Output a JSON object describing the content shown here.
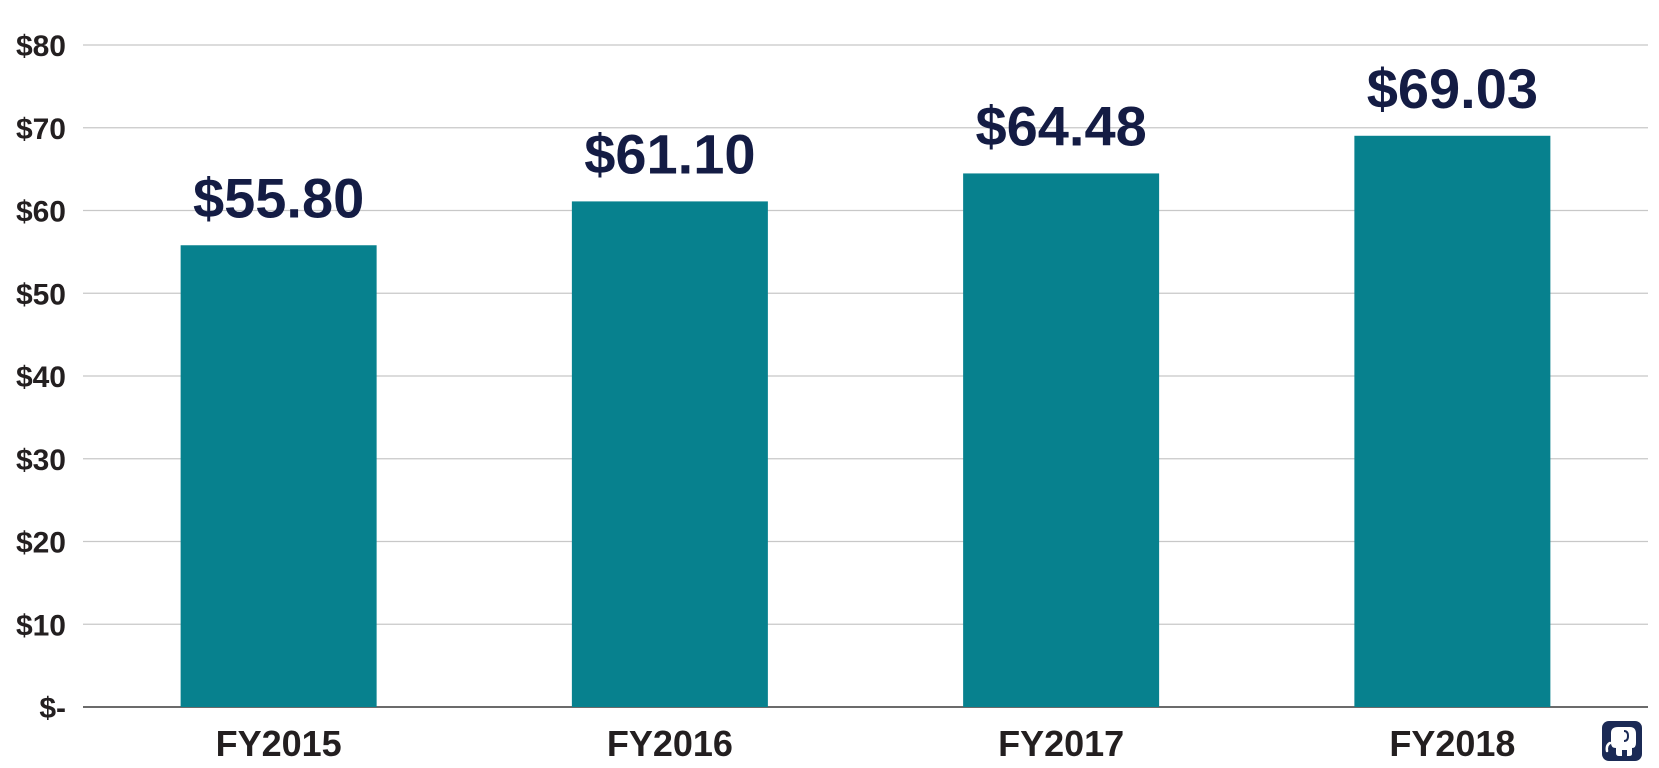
{
  "chart_data": {
    "type": "bar",
    "categories": [
      "FY2015",
      "FY2016",
      "FY2017",
      "FY2018"
    ],
    "values": [
      55.8,
      61.1,
      64.48,
      69.03
    ],
    "data_labels": [
      "$55.80",
      "$61.10",
      "$64.48",
      "$69.03"
    ],
    "y_ticks": [
      {
        "value": 0,
        "label": "$-"
      },
      {
        "value": 10,
        "label": "$10"
      },
      {
        "value": 20,
        "label": "$20"
      },
      {
        "value": 30,
        "label": "$30"
      },
      {
        "value": 40,
        "label": "$40"
      },
      {
        "value": 50,
        "label": "$50"
      },
      {
        "value": 60,
        "label": "$60"
      },
      {
        "value": 70,
        "label": "$70"
      },
      {
        "value": 80,
        "label": "$80"
      }
    ],
    "ylim": [
      0,
      80
    ],
    "grid": true,
    "legend": "none"
  },
  "colors": {
    "bar": "#07818e",
    "data_label": "#141c44",
    "axis_text": "#231f20",
    "grid": "#c8c8c8",
    "logo_bg": "#1b2a55"
  },
  "logo": {
    "icon": "elephant-logo-icon"
  }
}
